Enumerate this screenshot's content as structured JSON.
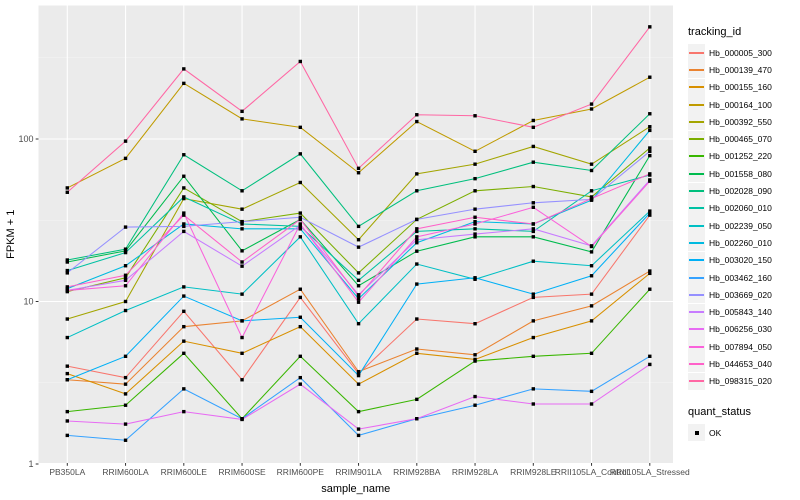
{
  "chart_data": {
    "type": "line",
    "title": "",
    "xlabel": "sample_name",
    "ylabel": "FPKM + 1",
    "y_scale": "log10",
    "y_ticks": [
      {
        "value": 1,
        "label": "1"
      },
      {
        "value": 10,
        "label": "10"
      },
      {
        "value": 100,
        "label": "100"
      }
    ],
    "y_minor_ticks": [
      3.1623,
      31.623,
      316.23
    ],
    "ylim": [
      1.25,
      560
    ],
    "grid": "white-on-gray-panel",
    "panel_color": "#EBEBEB",
    "grid_major_color": "#FFFFFF",
    "grid_minor_color": "#F7F7F7",
    "tick_label_color": "#4D4D4D",
    "point_shape": "filled-square-black",
    "legend_position": "right",
    "categories": [
      "PB350LA",
      "RRIM600LA",
      "RRIM600LE",
      "RRIM600SE",
      "RRIM600PE",
      "RRIM901LA",
      "RRIM928BA",
      "RRIM928LA",
      "RRIM928LE",
      "RRII105LA_Control",
      "RRII105LA_Stressed"
    ],
    "series": [
      {
        "name": "Hb_000005_300",
        "color": "#F8766D",
        "values": [
          4.0,
          3.4,
          8.7,
          3.3,
          10.6,
          3.6,
          7.8,
          7.3,
          10.6,
          11.1,
          34
        ]
      },
      {
        "name": "Hb_000139_470",
        "color": "#EA8331",
        "values": [
          3.3,
          3.1,
          7.0,
          7.6,
          11.9,
          3.7,
          5.1,
          4.7,
          7.6,
          9.4,
          15.4
        ]
      },
      {
        "name": "Hb_000155_160",
        "color": "#D89000",
        "values": [
          3.6,
          2.7,
          5.7,
          4.8,
          7.0,
          3.1,
          4.8,
          4.4,
          6.0,
          7.6,
          14.9
        ]
      },
      {
        "name": "Hb_000164_100",
        "color": "#C09B00",
        "values": [
          50,
          76,
          220,
          133,
          118,
          62,
          128,
          84,
          130,
          153,
          240
        ]
      },
      {
        "name": "Hb_000392_550",
        "color": "#A3A500",
        "values": [
          7.8,
          10,
          43,
          37,
          54,
          24,
          61,
          70,
          90,
          70,
          119
        ]
      },
      {
        "name": "Hb_000465_070",
        "color": "#7CAE00",
        "values": [
          11.5,
          14,
          50,
          31,
          35,
          15,
          32,
          48,
          51,
          44,
          88
        ]
      },
      {
        "name": "Hb_001252_220",
        "color": "#39B600",
        "values": [
          2.1,
          2.3,
          4.8,
          1.9,
          4.6,
          2.1,
          2.5,
          4.3,
          4.6,
          4.8,
          11.9
        ]
      },
      {
        "name": "Hb_001558_080",
        "color": "#00BB4E",
        "values": [
          17.5,
          20.5,
          59,
          20.5,
          32,
          12.5,
          20.4,
          25,
          25,
          20.2,
          79
        ]
      },
      {
        "name": "Hb_002028_090",
        "color": "#00BF7D",
        "values": [
          18,
          21,
          80,
          48,
          81,
          29,
          48,
          57,
          72,
          64,
          143
        ]
      },
      {
        "name": "Hb_002060_010",
        "color": "#00C1A3",
        "values": [
          15.5,
          20,
          44,
          30,
          29,
          13.5,
          27,
          28,
          27,
          48,
          60
        ]
      },
      {
        "name": "Hb_002239_050",
        "color": "#00BFC4",
        "values": [
          6.0,
          8.8,
          12.3,
          11.1,
          25,
          7.3,
          17,
          13.7,
          17.7,
          16.6,
          36
        ]
      },
      {
        "name": "Hb_002260_010",
        "color": "#00BAE0",
        "values": [
          12,
          16.6,
          30,
          28,
          28,
          10.4,
          23,
          31,
          30,
          42,
          113
        ]
      },
      {
        "name": "Hb_003020_150",
        "color": "#00B0F6",
        "values": [
          3.3,
          4.6,
          10.8,
          7.6,
          8.0,
          3.5,
          12.8,
          14,
          11.1,
          14.4,
          35
        ]
      },
      {
        "name": "Hb_003462_160",
        "color": "#35A2FF",
        "values": [
          1.5,
          1.4,
          2.9,
          1.9,
          3.4,
          1.5,
          1.9,
          2.3,
          2.9,
          2.8,
          4.6
        ]
      },
      {
        "name": "Hb_003669_020",
        "color": "#9590FF",
        "values": [
          15,
          28.7,
          29,
          31,
          33,
          21.6,
          32,
          37,
          40.5,
          42.5,
          84
        ]
      },
      {
        "name": "Hb_005843_140",
        "color": "#C77CFF",
        "values": [
          11.7,
          13.5,
          27,
          16.5,
          29.5,
          11,
          24,
          26,
          28,
          22,
          56
        ]
      },
      {
        "name": "Hb_006256_030",
        "color": "#E76BF3",
        "values": [
          1.84,
          1.76,
          2.1,
          1.88,
          3.1,
          1.64,
          1.9,
          2.6,
          2.34,
          2.34,
          4.1
        ]
      },
      {
        "name": "Hb_007894_050",
        "color": "#FA62DB",
        "values": [
          11.7,
          12.5,
          35,
          6.0,
          30,
          9.9,
          25,
          30,
          38,
          21.8,
          55
        ]
      },
      {
        "name": "Hb_044653_040",
        "color": "#FF61C9",
        "values": [
          12.3,
          14.5,
          34,
          17.5,
          32,
          10.8,
          28,
          33,
          30,
          43,
          61
        ]
      },
      {
        "name": "Hb_098315_020",
        "color": "#FF67A4",
        "values": [
          47,
          97,
          270,
          148,
          300,
          66,
          141,
          139,
          118,
          164,
          490
        ]
      }
    ]
  },
  "legend_tracking": {
    "title": "tracking_id"
  },
  "legend_quant": {
    "title": "quant_status",
    "items": [
      {
        "label": "OK",
        "shape": "filled-square-black"
      }
    ]
  }
}
